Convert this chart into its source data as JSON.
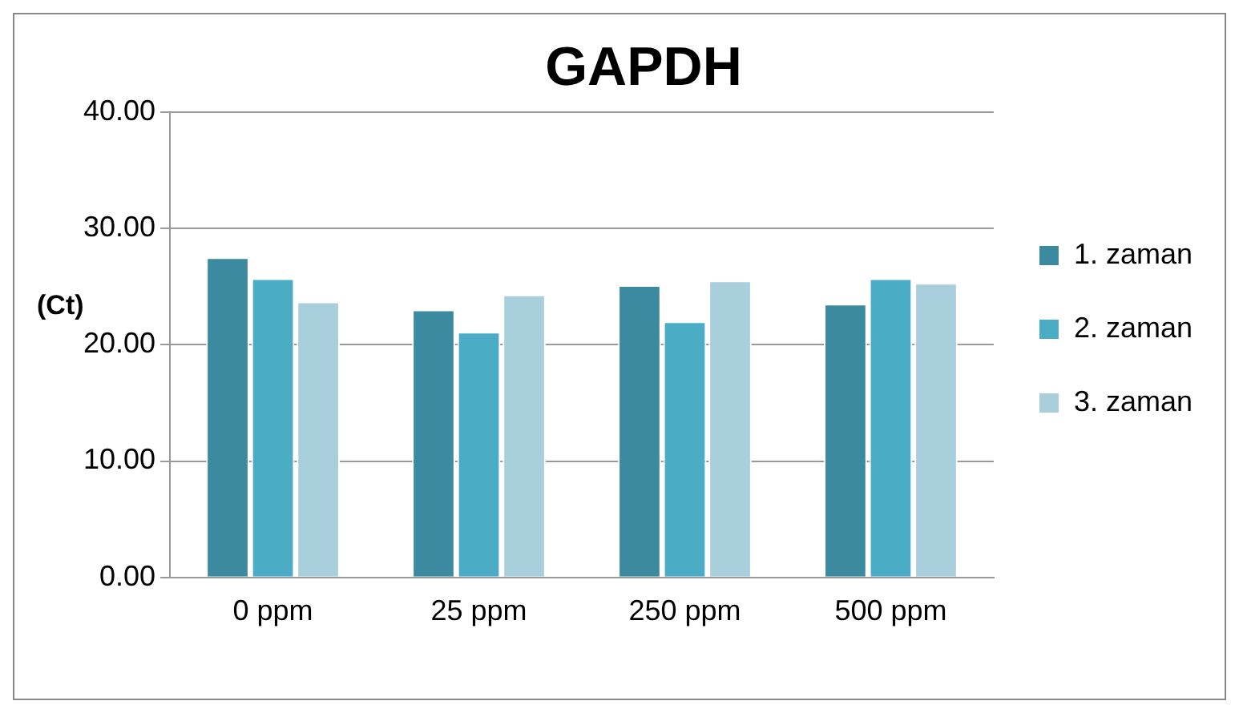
{
  "chart_data": {
    "type": "bar",
    "title": "GAPDH",
    "ylabel": "(Ct)",
    "categories": [
      "0 ppm",
      "25 ppm",
      "250 ppm",
      "500 ppm"
    ],
    "series": [
      {
        "name": "1. zaman",
        "color": "#3b8aa0",
        "values": [
          27.5,
          23.0,
          25.1,
          23.5
        ]
      },
      {
        "name": "2. zaman",
        "color": "#4bacc6",
        "values": [
          25.7,
          21.1,
          22.0,
          25.7
        ]
      },
      {
        "name": "3. zaman",
        "color": "#a9cedc",
        "values": [
          23.7,
          24.3,
          25.5,
          25.3
        ]
      }
    ],
    "ylim": [
      0,
      40
    ],
    "yticks": [
      {
        "value": 0,
        "label": "0.00"
      },
      {
        "value": 10,
        "label": "10.00"
      },
      {
        "value": 20,
        "label": "20.00"
      },
      {
        "value": 30,
        "label": "30.00"
      },
      {
        "value": 40,
        "label": "40.00"
      }
    ],
    "grid": "y",
    "legend": "right"
  }
}
